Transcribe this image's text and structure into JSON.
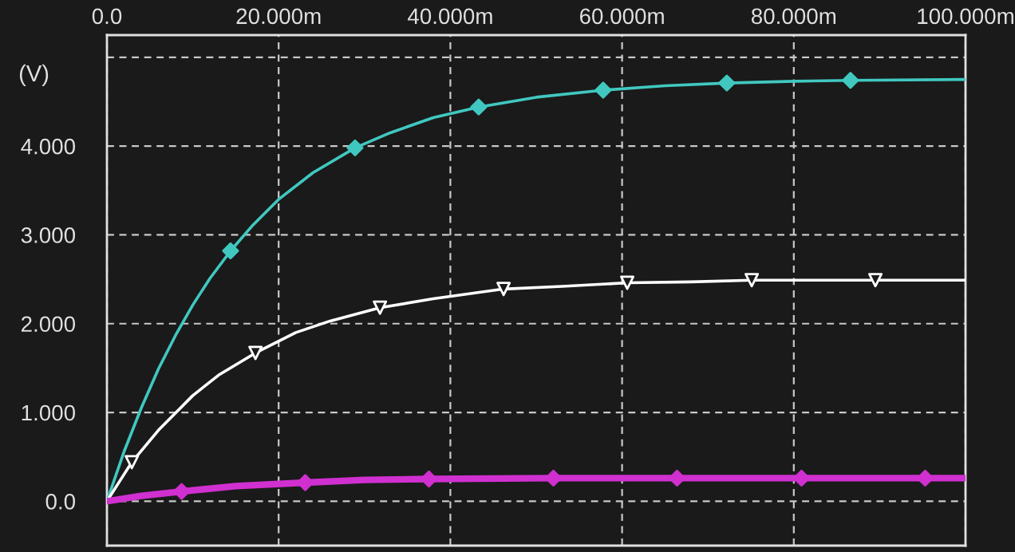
{
  "chart_data": {
    "type": "line",
    "ylabel": "(V)",
    "xlim": [
      0,
      100
    ],
    "ylim": [
      -0.5,
      5.25
    ],
    "xticks": [
      {
        "value": 0,
        "label": "0.0"
      },
      {
        "value": 20,
        "label": "20.000m"
      },
      {
        "value": 40,
        "label": "40.000m"
      },
      {
        "value": 60,
        "label": "60.000m"
      },
      {
        "value": 80,
        "label": "80.000m"
      },
      {
        "value": 100,
        "label": "100.000m"
      }
    ],
    "yticks": [
      {
        "value": 0,
        "label": "0.0"
      },
      {
        "value": 1,
        "label": "1.000"
      },
      {
        "value": 2,
        "label": "2.000"
      },
      {
        "value": 3,
        "label": "3.000"
      },
      {
        "value": 4,
        "label": "4.000"
      },
      {
        "value": 5,
        "label": null
      }
    ],
    "grid": true,
    "series": [
      {
        "color": "#40c8c0",
        "marker": "none",
        "x": [
          0,
          2,
          4,
          6,
          8,
          10,
          12,
          14.4,
          17,
          20,
          24,
          28.9,
          33,
          38,
          43.3,
          50,
          57.8,
          65,
          72.2,
          80,
          86.6,
          100
        ],
        "values": [
          0,
          0.56,
          1.05,
          1.49,
          1.87,
          2.21,
          2.51,
          2.82,
          3.11,
          3.4,
          3.7,
          3.98,
          4.15,
          4.32,
          4.44,
          4.55,
          4.63,
          4.68,
          4.71,
          4.73,
          4.74,
          4.75
        ]
      },
      {
        "type": "scatter",
        "color": "#40c8c0",
        "marker": "diamond",
        "x": [
          14.4,
          28.9,
          43.3,
          57.8,
          72.2,
          86.6
        ],
        "values": [
          2.82,
          3.98,
          4.44,
          4.63,
          4.71,
          4.74
        ]
      },
      {
        "color": "#ffffff",
        "marker": "none",
        "x": [
          0,
          2.9,
          6,
          10,
          13,
          17.3,
          22,
          26,
          31.8,
          38,
          46.2,
          53,
          60.6,
          68,
          75.1,
          89.5,
          100
        ],
        "values": [
          0,
          0.44,
          0.8,
          1.19,
          1.42,
          1.67,
          1.9,
          2.03,
          2.18,
          2.28,
          2.39,
          2.42,
          2.46,
          2.47,
          2.49,
          2.49,
          2.49
        ]
      },
      {
        "type": "scatter",
        "color": "#ffffff",
        "marker": "triangle",
        "x": [
          2.9,
          17.3,
          31.8,
          46.2,
          60.6,
          75.1,
          89.5
        ],
        "values": [
          0.44,
          1.67,
          2.18,
          2.39,
          2.46,
          2.49,
          2.49
        ]
      },
      {
        "color": "#d030d0",
        "marker": "none",
        "x": [
          0,
          4,
          8.7,
          15,
          23.1,
          30,
          37.5,
          52,
          66.4,
          80.9,
          95.3,
          100
        ],
        "values": [
          0,
          0.06,
          0.11,
          0.17,
          0.21,
          0.24,
          0.25,
          0.26,
          0.26,
          0.26,
          0.26,
          0.26
        ]
      },
      {
        "type": "scatter",
        "color": "#d030d0",
        "marker": "diamond",
        "x": [
          8.7,
          23.1,
          37.5,
          52,
          66.4,
          80.9,
          95.3
        ],
        "values": [
          0.11,
          0.21,
          0.25,
          0.26,
          0.26,
          0.26,
          0.26
        ]
      }
    ]
  }
}
